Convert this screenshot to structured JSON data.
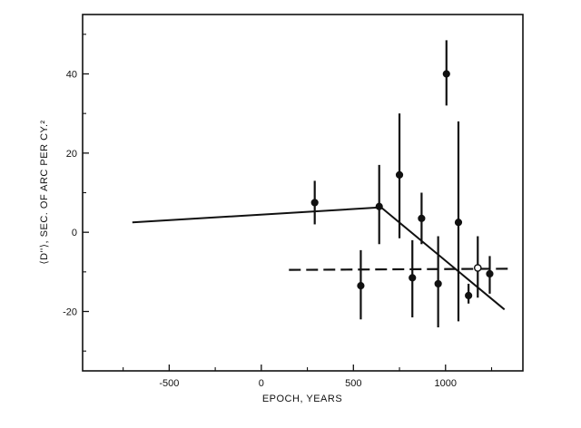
{
  "chart_data": {
    "type": "scatter",
    "xlabel": "EPOCH, YEARS",
    "ylabel": "⟨D''⟩, SEC. OF ARC PER CY.²",
    "xlim": [
      -970,
      1420
    ],
    "ylim": [
      -35,
      55
    ],
    "grid": false,
    "x_ticks": [
      {
        "value": -500,
        "label": "-500"
      },
      {
        "value": 0,
        "label": "0"
      },
      {
        "value": 500,
        "label": "500"
      },
      {
        "value": 1000,
        "label": "1000"
      }
    ],
    "y_ticks": [
      {
        "value": 40,
        "label": "40"
      },
      {
        "value": 20,
        "label": "20"
      },
      {
        "value": 0,
        "label": "0"
      },
      {
        "value": -20,
        "label": "-20"
      }
    ],
    "x_minor_ticks": [
      -750,
      -250,
      250,
      750,
      1250
    ],
    "y_minor_ticks": [
      50,
      30,
      10,
      -10,
      -30
    ],
    "points": [
      {
        "x": 290,
        "y": 7.5,
        "y_low": 2.0,
        "y_high": 13.0,
        "filled": true
      },
      {
        "x": 540,
        "y": -13.5,
        "y_low": -22.0,
        "y_high": -4.5,
        "filled": true
      },
      {
        "x": 640,
        "y": 6.5,
        "y_low": -3.0,
        "y_high": 17.0,
        "filled": true
      },
      {
        "x": 750,
        "y": 14.5,
        "y_low": -1.5,
        "y_high": 30.0,
        "filled": true
      },
      {
        "x": 820,
        "y": -11.5,
        "y_low": -21.5,
        "y_high": -2.0,
        "filled": true
      },
      {
        "x": 870,
        "y": 3.5,
        "y_low": -3.0,
        "y_high": 10.0,
        "filled": true
      },
      {
        "x": 960,
        "y": -13.0,
        "y_low": -24.0,
        "y_high": -1.0,
        "filled": true
      },
      {
        "x": 1005,
        "y": 40.0,
        "y_low": 32.0,
        "y_high": 48.5,
        "filled": true
      },
      {
        "x": 1070,
        "y": 2.5,
        "y_low": -22.5,
        "y_high": 28.0,
        "filled": true
      },
      {
        "x": 1125,
        "y": -16.0,
        "y_low": -18.0,
        "y_high": -13.0,
        "filled": true
      },
      {
        "x": 1175,
        "y": -9.0,
        "y_low": -16.5,
        "y_high": -1.0,
        "filled": false
      },
      {
        "x": 1240,
        "y": -10.5,
        "y_low": -15.5,
        "y_high": -6.0,
        "filled": true
      }
    ],
    "solid_line": [
      {
        "x": -700,
        "y": 2.5
      },
      {
        "x": 650,
        "y": 6.3
      },
      {
        "x": 1320,
        "y": -19.5
      }
    ],
    "dashed_line": [
      {
        "x": 150,
        "y": -9.5
      },
      {
        "x": 1340,
        "y": -9.2
      }
    ]
  }
}
